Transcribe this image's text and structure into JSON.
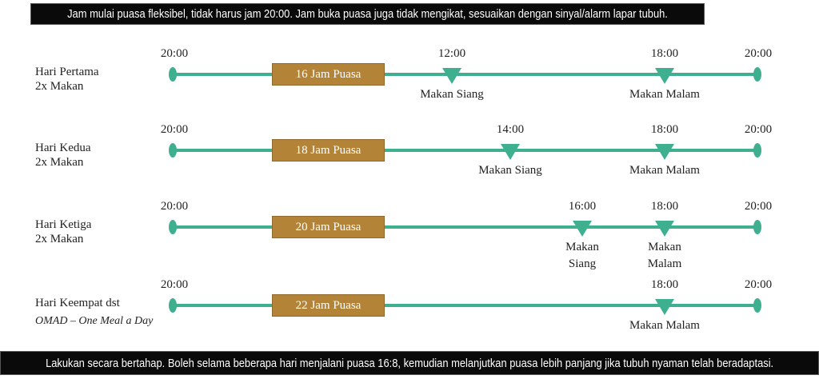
{
  "top_banner": "Jam mulai puasa fleksibel, tidak harus jam 20:00. Jam buka puasa juga tidak mengikat, sesuaikan dengan sinyal/alarm lapar tubuh.",
  "bottom_banner": "Lakukan secara bertahap. Boleh selama beberapa hari menjalani puasa 16:8, kemudian melanjutkan puasa lebih panjang jika tubuh nyaman telah beradaptasi.",
  "colors": {
    "line": "#3fb08f",
    "fasting_box": "#b38438",
    "banner": "#0a0a0a"
  },
  "rows": [
    {
      "title": "Hari Pertama",
      "subtitle": "2x Makan",
      "subtitle_italic": false,
      "start": "20:00",
      "end": "20:00",
      "fasting": "16 Jam Puasa",
      "meals": [
        {
          "time": "12:00",
          "label": "Makan Siang"
        },
        {
          "time": "18:00",
          "label": "Makan Malam"
        }
      ]
    },
    {
      "title": "Hari Kedua",
      "subtitle": "2x Makan",
      "subtitle_italic": false,
      "start": "20:00",
      "end": "20:00",
      "fasting": "18 Jam Puasa",
      "meals": [
        {
          "time": "14:00",
          "label": "Makan Siang"
        },
        {
          "time": "18:00",
          "label": "Makan Malam"
        }
      ]
    },
    {
      "title": "Hari Ketiga",
      "subtitle": "2x Makan",
      "subtitle_italic": false,
      "start": "20:00",
      "end": "20:00",
      "fasting": "20 Jam Puasa",
      "meals": [
        {
          "time": "16:00",
          "label": "Makan\nSiang"
        },
        {
          "time": "18:00",
          "label": "Makan\nMalam"
        }
      ]
    },
    {
      "title": "Hari Keempat dst",
      "subtitle": "OMAD – One Meal a Day",
      "subtitle_italic": true,
      "start": "20:00",
      "end": "20:00",
      "fasting": "22 Jam Puasa",
      "meals": [
        {
          "time": "18:00",
          "label": "Makan Malam"
        }
      ]
    }
  ]
}
